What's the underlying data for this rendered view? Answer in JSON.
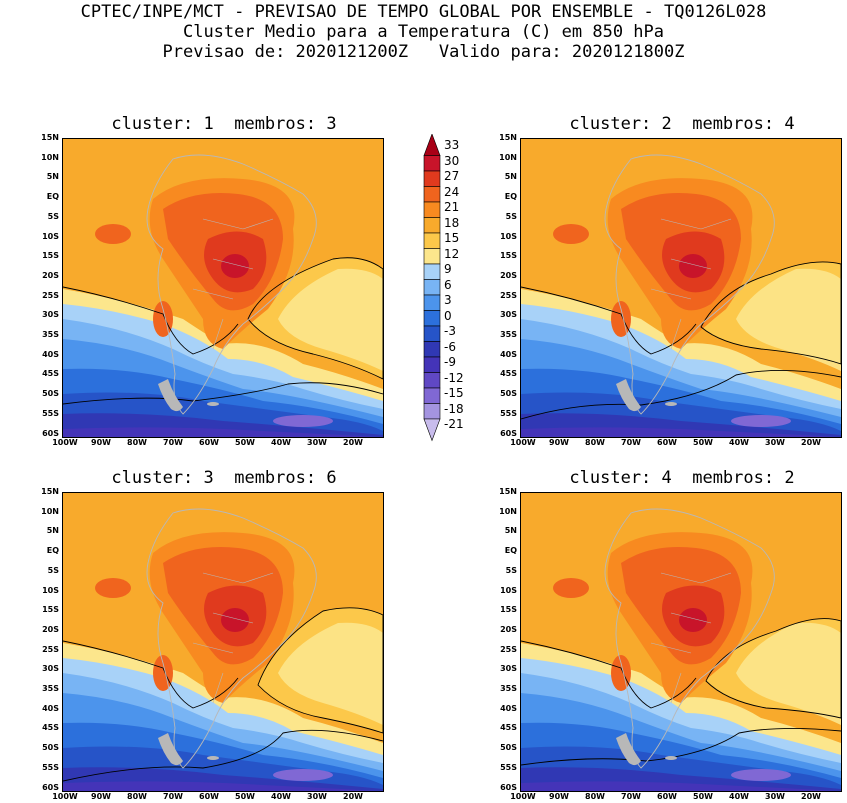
{
  "header": {
    "line1": "CPTEC/INPE/MCT - PREVISAO DE TEMPO GLOBAL POR ENSEMBLE - TQ0126L028",
    "line2": "Cluster Medio para a Temperatura (C) em 850 hPa",
    "line3": "Previsao de: 2020121200Z   Valido para: 2020121800Z"
  },
  "panels": [
    {
      "title": "cluster: 1  membros: 3",
      "contours": [
        "12",
        "12",
        "0"
      ]
    },
    {
      "title": "cluster: 2  membros: 4",
      "contours": [
        "12",
        "12",
        "0",
        "0"
      ]
    },
    {
      "title": "cluster: 3  membros: 6",
      "contours": [
        "12",
        "12",
        "0"
      ]
    },
    {
      "title": "cluster: 4  membros: 2",
      "contours": [
        "12",
        "12",
        "0",
        "0"
      ]
    }
  ],
  "lat_labels": [
    "15N",
    "10N",
    "5N",
    "EQ",
    "5S",
    "10S",
    "15S",
    "20S",
    "25S",
    "30S",
    "35S",
    "40S",
    "45S",
    "50S",
    "55S",
    "60S"
  ],
  "lon_labels": [
    "100W",
    "90W",
    "80W",
    "70W",
    "60W",
    "50W",
    "40W",
    "30W",
    "20W"
  ],
  "colorbar": {
    "labels": [
      "33",
      "30",
      "27",
      "24",
      "21",
      "18",
      "15",
      "12",
      "9",
      "6",
      "3",
      "0",
      "-3",
      "-6",
      "-9",
      "-12",
      "-15",
      "-18",
      "-21"
    ],
    "colors": [
      "#a80016",
      "#c8142a",
      "#e03a1e",
      "#f0641e",
      "#f88a20",
      "#f8aa2c",
      "#fcc84a",
      "#fce68c",
      "#a8d2f8",
      "#78b4f4",
      "#4c94ec",
      "#2c70dc",
      "#2654c8",
      "#3038b4",
      "#4434b8",
      "#6048c4",
      "#8068d4",
      "#a494e0",
      "#c8bcec"
    ]
  }
}
